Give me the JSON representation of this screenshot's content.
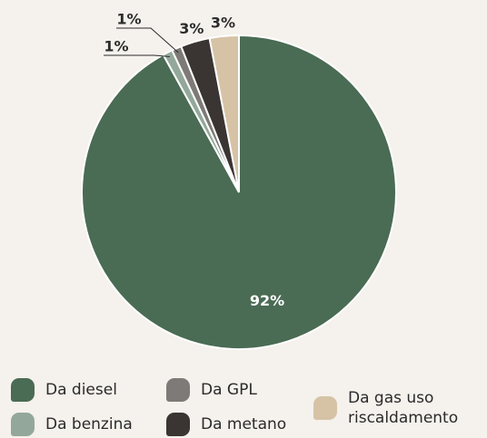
{
  "chart_data": {
    "type": "pie",
    "categories": [
      "Da diesel",
      "Da benzina",
      "Da GPL",
      "Da metano",
      "Da gas uso riscaldamento"
    ],
    "values": [
      92,
      1,
      1,
      3,
      3
    ],
    "value_labels": [
      "92%",
      "1%",
      "1%",
      "3%",
      "3%"
    ],
    "colors": [
      "#4a6b54",
      "#93a89a",
      "#7d7a77",
      "#3a3532",
      "#d6c3a6"
    ]
  }
}
